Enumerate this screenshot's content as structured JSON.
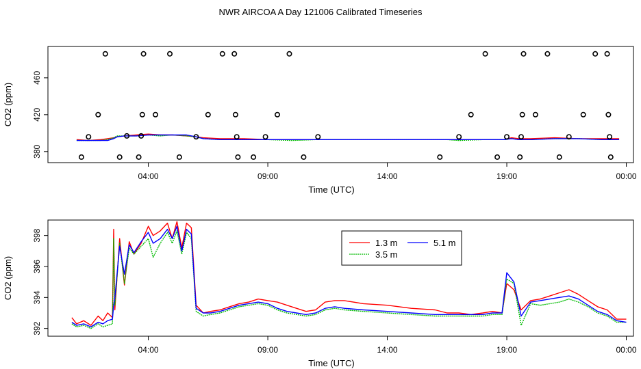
{
  "chart_data": {
    "title": "NWR AIRCOA A  Day 121006  Calibrated Timeseries",
    "panels": [
      {
        "type": "line+scatter",
        "xlabel": "Time (UTC)",
        "ylabel": "CO2 (ppm)",
        "xlim": [
          -0.2,
          24.3
        ],
        "ylim": [
          368,
          494
        ],
        "xticks": [
          {
            "value": 4,
            "label": "04:00"
          },
          {
            "value": 9,
            "label": "09:00"
          },
          {
            "value": 14,
            "label": "14:00"
          },
          {
            "value": 19,
            "label": "19:00"
          },
          {
            "value": 24,
            "label": "00:00"
          }
        ],
        "yticks": [
          {
            "value": 380,
            "label": "380"
          },
          {
            "value": 420,
            "label": "420"
          },
          {
            "value": 460,
            "label": "460"
          }
        ],
        "series": [
          {
            "name": "1.3 m",
            "color": "#ff0000",
            "x": [
              1,
              1.5,
              2,
              2.3,
              2.55,
              2.7,
              3,
              3.5,
              4,
              4.5,
              5,
              5.6,
              6,
              6.3,
              7,
              8,
              9,
              10,
              11,
              12,
              13,
              14,
              15,
              16,
              16.5,
              17,
              18,
              18.9,
              19.2,
              19.5,
              20,
              21,
              22,
              23,
              23.7
            ],
            "y": [
              393,
              392,
              393,
              394,
              395,
              396,
              397,
              398,
              399,
              398,
              398,
              397,
              396,
              395,
              394,
              394,
              393,
              393,
              393,
              393,
              393,
              393,
              393,
              393,
              393,
              393,
              393,
              393,
              395,
              394,
              394,
              395,
              394,
              394,
              394
            ]
          },
          {
            "name": "3.5 m",
            "color": "#00bb00",
            "x": [
              1,
              1.5,
              2,
              2.3,
              2.55,
              2.7,
              3,
              3.5,
              4,
              4.5,
              5,
              5.6,
              6,
              6.3,
              7,
              8,
              9,
              10,
              11,
              12,
              13,
              14,
              15,
              16,
              16.5,
              17,
              18,
              18.9,
              19.2,
              19.5,
              20,
              21,
              22,
              23,
              23.7
            ],
            "y": [
              392,
              392,
              392,
              393,
              395,
              397,
              397,
              397,
              398,
              397,
              398,
              397,
              396,
              394,
              393,
              393,
              393,
              392,
              393,
              393,
              393,
              393,
              393,
              393,
              393,
              392,
              393,
              393,
              394,
              393,
              393,
              394,
              394,
              393,
              393
            ]
          },
          {
            "name": "5.1 m",
            "color": "#0000ff",
            "x": [
              1,
              1.5,
              2,
              2.3,
              2.55,
              2.7,
              3,
              3.5,
              4,
              4.5,
              5,
              5.6,
              6,
              6.3,
              7,
              8,
              9,
              10,
              11,
              12,
              13,
              14,
              15,
              16,
              16.5,
              17,
              18,
              18.9,
              19.2,
              19.5,
              20,
              21,
              22,
              23,
              23.7
            ],
            "y": [
              392,
              392,
              392,
              392,
              394,
              396,
              397,
              397,
              398,
              398,
              398,
              398,
              396,
              394,
              393,
              393,
              393,
              393,
              393,
              393,
              393,
              393,
              393,
              393,
              393,
              393,
              393,
              393,
              394,
              393,
              393,
              394,
              394,
              393,
              393
            ]
          }
        ],
        "points": [
          {
            "x": 1.2,
            "y": 374
          },
          {
            "x": 1.5,
            "y": 396
          },
          {
            "x": 1.9,
            "y": 420
          },
          {
            "x": 2.2,
            "y": 486
          },
          {
            "x": 2.8,
            "y": 374
          },
          {
            "x": 3.1,
            "y": 397
          },
          {
            "x": 3.6,
            "y": 374
          },
          {
            "x": 3.7,
            "y": 397
          },
          {
            "x": 3.75,
            "y": 420
          },
          {
            "x": 3.8,
            "y": 486
          },
          {
            "x": 4.3,
            "y": 420
          },
          {
            "x": 4.9,
            "y": 486
          },
          {
            "x": 5.3,
            "y": 374
          },
          {
            "x": 6.0,
            "y": 396
          },
          {
            "x": 6.5,
            "y": 420
          },
          {
            "x": 7.1,
            "y": 486
          },
          {
            "x": 7.6,
            "y": 486
          },
          {
            "x": 7.65,
            "y": 420
          },
          {
            "x": 7.7,
            "y": 396
          },
          {
            "x": 7.75,
            "y": 374
          },
          {
            "x": 8.4,
            "y": 374
          },
          {
            "x": 8.9,
            "y": 396
          },
          {
            "x": 9.4,
            "y": 420
          },
          {
            "x": 9.9,
            "y": 486
          },
          {
            "x": 10.5,
            "y": 374
          },
          {
            "x": 11.1,
            "y": 396
          },
          {
            "x": 16.2,
            "y": 374
          },
          {
            "x": 17.0,
            "y": 396
          },
          {
            "x": 17.5,
            "y": 420
          },
          {
            "x": 18.1,
            "y": 486
          },
          {
            "x": 18.6,
            "y": 374
          },
          {
            "x": 19.0,
            "y": 396
          },
          {
            "x": 19.55,
            "y": 374
          },
          {
            "x": 19.6,
            "y": 396
          },
          {
            "x": 19.65,
            "y": 420
          },
          {
            "x": 19.7,
            "y": 486
          },
          {
            "x": 20.2,
            "y": 420
          },
          {
            "x": 20.7,
            "y": 486
          },
          {
            "x": 21.2,
            "y": 374
          },
          {
            "x": 21.6,
            "y": 396
          },
          {
            "x": 22.2,
            "y": 420
          },
          {
            "x": 22.7,
            "y": 486
          },
          {
            "x": 23.2,
            "y": 486
          },
          {
            "x": 23.25,
            "y": 420
          },
          {
            "x": 23.3,
            "y": 396
          },
          {
            "x": 23.35,
            "y": 374
          }
        ]
      },
      {
        "type": "line",
        "xlabel": "Time (UTC)",
        "ylabel": "CO2 (ppm)",
        "xlim": [
          -0.2,
          24.3
        ],
        "ylim": [
          391.5,
          399.0
        ],
        "xticks": [
          {
            "value": 4,
            "label": "04:00"
          },
          {
            "value": 9,
            "label": "09:00"
          },
          {
            "value": 14,
            "label": "14:00"
          },
          {
            "value": 19,
            "label": "19:00"
          },
          {
            "value": 24,
            "label": "00:00"
          }
        ],
        "yticks": [
          {
            "value": 392,
            "label": "392"
          },
          {
            "value": 394,
            "label": "394"
          },
          {
            "value": 396,
            "label": "396"
          },
          {
            "value": 398,
            "label": "398"
          }
        ],
        "legend_position": "top-center",
        "series": [
          {
            "name": "1.3 m",
            "color": "#ff0000",
            "x": [
              0.8,
              1,
              1.3,
              1.6,
              1.9,
              2.1,
              2.3,
              2.5,
              2.55,
              2.6,
              2.8,
              3,
              3.2,
              3.4,
              3.7,
              4,
              4.2,
              4.5,
              4.8,
              5,
              5.2,
              5.4,
              5.6,
              5.8,
              6,
              6.3,
              6.6,
              7,
              7.4,
              7.8,
              8.2,
              8.6,
              9,
              9.4,
              9.8,
              10.2,
              10.6,
              11,
              11.4,
              11.8,
              12.2,
              13,
              14,
              15,
              16,
              16.5,
              17,
              17.5,
              18,
              18.4,
              18.8,
              19,
              19.3,
              19.6,
              20,
              20.4,
              20.8,
              21.2,
              21.6,
              22,
              22.4,
              22.8,
              23.2,
              23.6,
              24
            ],
            "y": [
              392.7,
              392.3,
              392.5,
              392.2,
              392.8,
              392.5,
              393,
              392.7,
              398.4,
              393.2,
              397.8,
              394.8,
              397.6,
              396.8,
              397.5,
              398.6,
              398,
              398.3,
              398.8,
              397.8,
              398.9,
              397.2,
              398.8,
              398.5,
              393.5,
              393.0,
              393.1,
              393.2,
              393.4,
              393.6,
              393.7,
              393.9,
              393.8,
              393.7,
              393.5,
              393.3,
              393.1,
              393.2,
              393.7,
              393.8,
              393.8,
              393.6,
              393.5,
              393.3,
              393.2,
              393.0,
              393.0,
              392.9,
              393.0,
              393.1,
              393.0,
              394.9,
              394.5,
              393.2,
              393.8,
              393.9,
              394.1,
              394.3,
              394.5,
              394.2,
              393.8,
              393.4,
              393.2,
              392.6,
              392.6
            ]
          },
          {
            "name": "3.5 m",
            "color": "#00bb00",
            "x": [
              0.8,
              1,
              1.3,
              1.6,
              1.9,
              2.1,
              2.3,
              2.5,
              2.55,
              2.6,
              2.8,
              3,
              3.2,
              3.4,
              3.7,
              4,
              4.2,
              4.5,
              4.8,
              5,
              5.2,
              5.4,
              5.6,
              5.8,
              6,
              6.3,
              6.6,
              7,
              7.4,
              7.8,
              8.2,
              8.6,
              9,
              9.4,
              9.8,
              10.2,
              10.6,
              11,
              11.4,
              11.8,
              12.2,
              13,
              14,
              15,
              16,
              16.5,
              17,
              17.5,
              18,
              18.4,
              18.8,
              19,
              19.3,
              19.6,
              20,
              20.4,
              20.8,
              21.2,
              21.6,
              22,
              22.4,
              22.8,
              23.2,
              23.6,
              24
            ],
            "y": [
              392.3,
              392.1,
              392.2,
              392.0,
              392.3,
              392.1,
              392.2,
              392.3,
              397.8,
              393.5,
              397.5,
              394.9,
              397.2,
              396.8,
              397.3,
              397.8,
              396.6,
              397.5,
              398.2,
              397.5,
              398.3,
              396.8,
              398.2,
              397.8,
              393.1,
              392.8,
              392.9,
              393.0,
              393.2,
              393.4,
              393.5,
              393.6,
              393.5,
              393.2,
              393.0,
              392.9,
              392.8,
              392.9,
              393.2,
              393.3,
              393.2,
              393.1,
              393.0,
              392.9,
              392.8,
              392.8,
              392.8,
              392.8,
              392.8,
              392.9,
              392.9,
              395.2,
              394.9,
              392.2,
              393.6,
              393.5,
              393.6,
              393.7,
              393.9,
              393.7,
              393.4,
              393.0,
              392.8,
              392.4,
              392.4
            ]
          },
          {
            "name": "5.1 m",
            "color": "#0000ff",
            "x": [
              0.8,
              1,
              1.3,
              1.6,
              1.9,
              2.1,
              2.3,
              2.5,
              2.55,
              2.6,
              2.8,
              3,
              3.2,
              3.4,
              3.7,
              4,
              4.2,
              4.5,
              4.8,
              5,
              5.2,
              5.4,
              5.6,
              5.8,
              6,
              6.3,
              6.6,
              7,
              7.4,
              7.8,
              8.2,
              8.6,
              9,
              9.4,
              9.8,
              10.2,
              10.6,
              11,
              11.4,
              11.8,
              12.2,
              13,
              14,
              15,
              16,
              16.5,
              17,
              17.5,
              18,
              18.4,
              18.8,
              19,
              19.3,
              19.6,
              20,
              20.4,
              20.8,
              21.2,
              21.6,
              22,
              22.4,
              22.8,
              23.2,
              23.6,
              24
            ],
            "y": [
              392.4,
              392.2,
              392.3,
              392.1,
              392.4,
              392.3,
              392.5,
              392.6,
              393.5,
              394.0,
              397.3,
              395.5,
              397.4,
              396.9,
              397.6,
              398.2,
              397.5,
              397.8,
              398.4,
              397.8,
              398.6,
              397.0,
              398.4,
              398.1,
              393.3,
              393.0,
              393.0,
              393.1,
              393.3,
              393.5,
              393.6,
              393.7,
              393.6,
              393.3,
              393.1,
              393.0,
              392.9,
              393.0,
              393.3,
              393.4,
              393.3,
              393.2,
              393.1,
              393.0,
              392.9,
              392.9,
              392.9,
              392.9,
              392.9,
              393.0,
              393.0,
              395.6,
              395.0,
              392.8,
              393.7,
              393.8,
              393.9,
              394.0,
              394.1,
              393.9,
              393.5,
              393.1,
              392.9,
              392.5,
              392.4
            ]
          }
        ]
      }
    ]
  }
}
